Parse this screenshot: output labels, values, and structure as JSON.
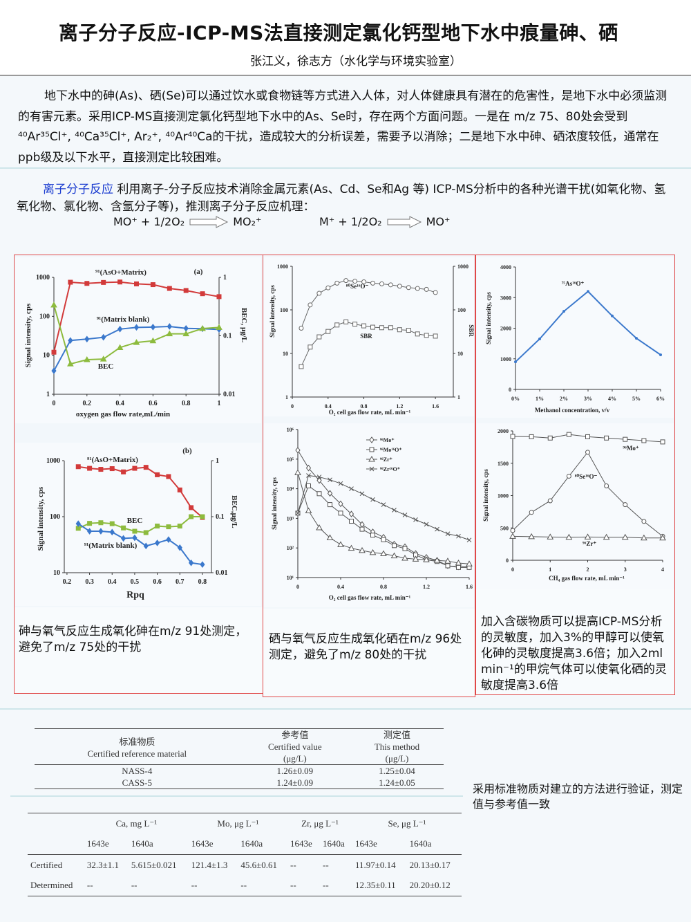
{
  "header": {
    "title": "离子分子反应-ICP-MS法直接测定氯化钙型地下水中痕量砷、硒",
    "authors": "张江义，徐志方（水化学与环境实验室）"
  },
  "intro": "地下水中的砷(As)、硒(Se)可以通过饮水或食物链等方式进入人体，对人体健康具有潜在的危害性，是地下水中必须监测的有害元素。采用ICP-MS直接测定氯化钙型地下水中的As、Se时，存在两个方面问题。一是在 m/z 75、80处会受到⁴⁰Ar³⁵Cl⁺, ⁴⁰Ca³⁵Cl⁺, Ar₂⁺, ⁴⁰Ar⁴⁰Ca的干扰，造成较大的分析误差，需要予以消除；二是地下水中砷、硒浓度较低，通常在ppb级及以下水平，直接测定比较困难。",
  "ion_reaction": {
    "keyword": "离子分子反应",
    "text": "  利用离子-分子反应技术消除金属元素(As、Cd、Se和Ag 等) ICP-MS分析中的各种光谱干扰(如氧化物、氢氧化物、氯化物、含氩分子等)，推测离子分子反应机理：",
    "eq1_left": "MO⁺ + 1/2O₂",
    "eq1_right": "MO₂⁺",
    "eq2_left": "M⁺ + 1/2O₂",
    "eq2_right": "MO⁺"
  },
  "captions": {
    "arsenic": "砷与氧气反应生成氧化砷在m/z 91处测定，避免了m/z 75处的干扰",
    "selenium": "硒与氧气反应生成氧化硒在m/z 96处测定，避免了m/z 80处的干扰",
    "carbon": "加入含碳物质可以提高ICP-MS分析的灵敏度，加入3%的甲醇可以使氧化砷的灵敏度提高3.6倍；加入2ml min⁻¹的甲烷气体可以使氧化硒的灵敏度提高3.6倍"
  },
  "table1": {
    "headers": [
      [
        "标准物质",
        "Certified reference material"
      ],
      [
        "参考值",
        "Certified value",
        "(μg/L)"
      ],
      [
        "测定值",
        "This method",
        "(μg/L)"
      ]
    ],
    "rows": [
      [
        "NASS-4",
        "1.26±0.09",
        "1.25±0.04"
      ],
      [
        "CASS-5",
        "1.24±0.09",
        "1.24±0.05"
      ]
    ]
  },
  "table2": {
    "groups": [
      "Ca, mg L⁻¹",
      "Mo, μg L⁻¹",
      "Zr, μg L⁻¹",
      "Se, μg L⁻¹"
    ],
    "subheaders": [
      "1643e",
      "1640a",
      "1643e",
      "1640a",
      "1643e",
      "1640a",
      "1643e",
      "1640a"
    ],
    "rows": [
      {
        "label": "Certified",
        "values": [
          "32.3±1.1",
          "5.615±0.021",
          "121.4±1.3",
          "45.6±0.61",
          "--",
          "--",
          "11.97±0.14",
          "20.13±0.17"
        ]
      },
      {
        "label": "Determined",
        "values": [
          "--",
          "--",
          "--",
          "--",
          "--",
          "--",
          "12.35±0.11",
          "20.20±0.12"
        ]
      }
    ]
  },
  "verification": "采用标准物质对建立的方法进行验证，测定值与参考值一致",
  "chart_data": [
    {
      "type": "line",
      "title": "",
      "yscale": "log",
      "xlim": [
        0,
        1
      ],
      "ylim": [
        1,
        1000
      ],
      "y2lim": [
        0.01,
        1
      ],
      "xlabel": "oxygen gas flow rate,mL/min",
      "ylabel": "Signal intensity, cps",
      "y2label": "BEC, μg/L",
      "xticks": {
        "values": [
          0,
          0.2,
          0.4,
          0.6,
          0.8,
          1
        ],
        "labels": [
          "0",
          "0.2",
          "0.4",
          "0.6",
          "0.8",
          "1"
        ]
      },
      "yticks": {
        "values": [
          1,
          10,
          100,
          1000
        ],
        "labels": [
          "1",
          "10",
          "100",
          "1000"
        ]
      },
      "y2ticks": {
        "values": [
          0.01,
          0.1,
          1
        ],
        "labels": [
          "0.01",
          "0.1",
          "1"
        ]
      },
      "annotations": [
        "⁹¹(AsO+Matrix)",
        "(a)",
        "⁹¹(Matrix blank)",
        "BEC"
      ],
      "x": [
        0,
        0.1,
        0.2,
        0.3,
        0.4,
        0.5,
        0.6,
        0.7,
        0.8,
        0.9,
        1
      ],
      "series": [
        {
          "name": "91(AsO+Matrix)",
          "axis": "y",
          "color": "#d23a3a",
          "marker": "square",
          "values": [
            12,
            750,
            700,
            740,
            760,
            680,
            650,
            520,
            460,
            380,
            320
          ]
        },
        {
          "name": "91(Matrix blank)",
          "axis": "y",
          "color": "#3b78cc",
          "marker": "diamond",
          "values": [
            4,
            24,
            26,
            29,
            47,
            52,
            53,
            55,
            49,
            48,
            46
          ]
        },
        {
          "name": "BEC",
          "axis": "y2",
          "color": "#8dbb3e",
          "marker": "triangle",
          "values": [
            0.336,
            0.033,
            0.039,
            0.04,
            0.063,
            0.077,
            0.082,
            0.108,
            0.108,
            0.133,
            0.139
          ]
        }
      ]
    },
    {
      "type": "line",
      "title": "",
      "yscale": "log",
      "xlim": [
        0,
        1.8
      ],
      "ylim": [
        1,
        1000
      ],
      "y2lim": [
        1,
        1000
      ],
      "xlabel": "O₂ cell gas flow rate, mL min⁻¹",
      "ylabel": "Signal intensity, cps",
      "y2label": "SBR",
      "xticks": {
        "values": [
          0,
          0.4,
          0.8,
          1.2,
          1.6
        ],
        "labels": [
          "0",
          "0.4",
          "0.8",
          "1.2",
          "1.6"
        ]
      },
      "yticks": {
        "values": [
          1,
          10,
          100,
          1000
        ],
        "labels": [
          "1",
          "10",
          "100",
          "1000"
        ]
      },
      "y2ticks": {
        "values": [
          1,
          10,
          100,
          1000
        ],
        "labels": [
          "1",
          "10",
          "100",
          "1000"
        ]
      },
      "annotations": [
        "⁸⁰Se¹⁶O⁻",
        "SBR"
      ],
      "x": [
        0.1,
        0.2,
        0.3,
        0.4,
        0.5,
        0.6,
        0.7,
        0.8,
        0.9,
        1.0,
        1.1,
        1.2,
        1.3,
        1.4,
        1.5,
        1.6
      ],
      "series": [
        {
          "name": "80Se16O",
          "axis": "y",
          "color": "#666666",
          "marker": "circle",
          "values": [
            38,
            130,
            240,
            320,
            410,
            470,
            455,
            440,
            410,
            395,
            375,
            350,
            325,
            310,
            295,
            250
          ]
        },
        {
          "name": "SBR",
          "axis": "y2",
          "color": "#666666",
          "marker": "square",
          "values": [
            5,
            14,
            24,
            32,
            45,
            53,
            47,
            43,
            40,
            39,
            39,
            35,
            34,
            28,
            26,
            25
          ]
        }
      ]
    },
    {
      "type": "line",
      "title": "",
      "yscale": "linear",
      "xlim": [
        0,
        6
      ],
      "ylim": [
        0,
        4000
      ],
      "xlabel": "Methanol concentration, v/v",
      "ylabel": "Signal intensity, cps",
      "xticks": {
        "values": [
          0,
          1,
          2,
          3,
          4,
          5,
          6
        ],
        "labels": [
          "0%",
          "1%",
          "2%",
          "3%",
          "4%",
          "5%",
          "6%"
        ]
      },
      "yticks": {
        "values": [
          0,
          1000,
          2000,
          3000,
          4000
        ],
        "labels": [
          "0",
          "1000",
          "2000",
          "3000",
          "4000"
        ]
      },
      "annotations": [
        "⁷⁵As¹⁶O⁺"
      ],
      "x": [
        0,
        1,
        2,
        3,
        4,
        5,
        6
      ],
      "series": [
        {
          "name": "75As16O+",
          "axis": "y",
          "color": "#3b78cc",
          "marker": "dot",
          "values": [
            900,
            1650,
            2550,
            3200,
            2400,
            1670,
            1130
          ]
        }
      ]
    },
    {
      "type": "line",
      "title": "",
      "yscale": "log",
      "xlim": [
        0.188,
        0.84
      ],
      "ylim": [
        10,
        1000
      ],
      "y2lim": [
        0.01,
        1
      ],
      "xlabel": "Rpq",
      "ylabel": "Signal intensity, cps",
      "y2label": "BEC,μg/L",
      "xticks": {
        "values": [
          0.2,
          0.3,
          0.4,
          0.5,
          0.6,
          0.7,
          0.8
        ],
        "labels": [
          "0.2",
          "0.3",
          "0.4",
          "0.5",
          "0.6",
          "0.7",
          "0.8"
        ]
      },
      "yticks": {
        "values": [
          10,
          100,
          1000
        ],
        "labels": [
          "10",
          "100",
          "1000"
        ]
      },
      "y2ticks": {
        "values": [
          0.01,
          0.1,
          1
        ],
        "labels": [
          "0.01",
          "0.1",
          "1"
        ]
      },
      "annotations": [
        "⁹¹(AsO+Matrix)",
        "(b)",
        "BEC",
        "⁹¹(Matrix blank)"
      ],
      "x": [
        0.25,
        0.3,
        0.35,
        0.4,
        0.45,
        0.5,
        0.55,
        0.6,
        0.65,
        0.7,
        0.75,
        0.8
      ],
      "series": [
        {
          "name": "91(AsO+Matrix)",
          "axis": "y",
          "color": "#d23a3a",
          "marker": "square",
          "values": [
            780,
            730,
            700,
            720,
            630,
            730,
            760,
            560,
            520,
            300,
            145,
            97
          ]
        },
        {
          "name": "BEC",
          "axis": "y2",
          "color": "#8dbb3e",
          "marker": "square",
          "values": [
            0.062,
            0.076,
            0.078,
            0.075,
            0.063,
            0.055,
            0.052,
            0.068,
            0.066,
            0.068,
            0.1,
            0.1
          ]
        },
        {
          "name": "91(Matrix blank)",
          "axis": "y",
          "color": "#3b78cc",
          "marker": "diamond",
          "values": [
            75,
            55,
            55,
            53,
            41,
            42,
            30,
            34,
            39,
            28,
            15,
            14
          ]
        }
      ]
    },
    {
      "type": "line",
      "title": "",
      "yscale": "log",
      "xlim": [
        0,
        1.6
      ],
      "ylim": [
        10,
        1000000
      ],
      "xlabel": "O₂ cell gas flow rate, mL min⁻¹",
      "ylabel": "Signal intensity, cps",
      "xticks": {
        "values": [
          0,
          0.4,
          0.8,
          1.2,
          1.6
        ],
        "labels": [
          "0",
          "0.4",
          "0.8",
          "1.2",
          "1.6"
        ]
      },
      "yticks": {
        "values": [
          10,
          100,
          1000,
          10000,
          100000,
          1000000
        ],
        "labels": [
          "10¹",
          "10²",
          "10³",
          "10⁴",
          "10⁵",
          "10⁶"
        ]
      },
      "legend": [
        "⁹⁶Mo⁺",
        "⁹⁶Mo¹⁶O⁺",
        "⁹⁶Zr⁺",
        "⁹⁶Zr¹⁶O⁺"
      ],
      "legend_position": "top-right",
      "x": [
        0,
        0.1,
        0.2,
        0.3,
        0.4,
        0.5,
        0.6,
        0.7,
        0.8,
        0.9,
        1.0,
        1.1,
        1.2,
        1.3,
        1.4,
        1.5,
        1.6
      ],
      "series": [
        {
          "name": "96Mo+",
          "axis": "y",
          "color": "#555555",
          "marker": "diamond",
          "values": [
            200000,
            50000,
            19000,
            7000,
            3100,
            1400,
            620,
            350,
            230,
            135,
            110,
            65,
            48,
            38,
            25,
            23,
            23
          ]
        },
        {
          "name": "96Mo16O+",
          "axis": "y",
          "color": "#555555",
          "marker": "square",
          "values": [
            1500,
            12500,
            6800,
            2900,
            1500,
            800,
            430,
            270,
            190,
            120,
            95,
            58,
            40,
            35,
            25,
            22,
            22
          ]
        },
        {
          "name": "96Zr+",
          "axis": "y",
          "color": "#555555",
          "marker": "triangle",
          "values": [
            35000,
            1800,
            480,
            220,
            130,
            98,
            82,
            70,
            64,
            54,
            45,
            42,
            40,
            38,
            36,
            31,
            29
          ]
        },
        {
          "name": "96Zr16O+",
          "axis": "y",
          "color": "#555555",
          "marker": "x",
          "values": [
            1500,
            28000,
            25000,
            20000,
            15000,
            10000,
            6800,
            4300,
            2900,
            1900,
            1300,
            900,
            630,
            430,
            300,
            250,
            185
          ]
        }
      ]
    },
    {
      "type": "line",
      "title": "",
      "yscale": "linear",
      "xlim": [
        0,
        4
      ],
      "ylim": [
        0,
        2000
      ],
      "xlabel": "CH₄ gas flow rate, mL min⁻¹",
      "ylabel": "Signal intensity, cps",
      "xticks": {
        "values": [
          0,
          1,
          2,
          3,
          4
        ],
        "labels": [
          "0",
          "1",
          "2",
          "3",
          "4"
        ]
      },
      "yticks": {
        "values": [
          0,
          500,
          1000,
          1500,
          2000
        ],
        "labels": [
          "0",
          "500",
          "1000",
          "1500",
          "2000"
        ]
      },
      "annotations": [
        "⁹⁶Mo⁺",
        "⁸⁰Se¹⁶O⁻",
        "⁹⁶Zr⁺"
      ],
      "x": [
        0,
        0.5,
        1,
        1.5,
        2,
        2.5,
        3,
        3.5,
        4
      ],
      "series": [
        {
          "name": "96Mo+",
          "axis": "y",
          "color": "#555555",
          "marker": "square",
          "values": [
            1915,
            1910,
            1890,
            1945,
            1910,
            1890,
            1870,
            1850,
            1830
          ]
        },
        {
          "name": "80Se16O-",
          "axis": "y",
          "color": "#555555",
          "marker": "circle",
          "values": [
            460,
            740,
            920,
            1300,
            1670,
            1150,
            860,
            600,
            370
          ]
        },
        {
          "name": "96Zr+",
          "axis": "y",
          "color": "#555555",
          "marker": "triangle",
          "values": [
            370,
            365,
            360,
            355,
            360,
            355,
            355,
            345,
            345
          ]
        }
      ]
    }
  ]
}
